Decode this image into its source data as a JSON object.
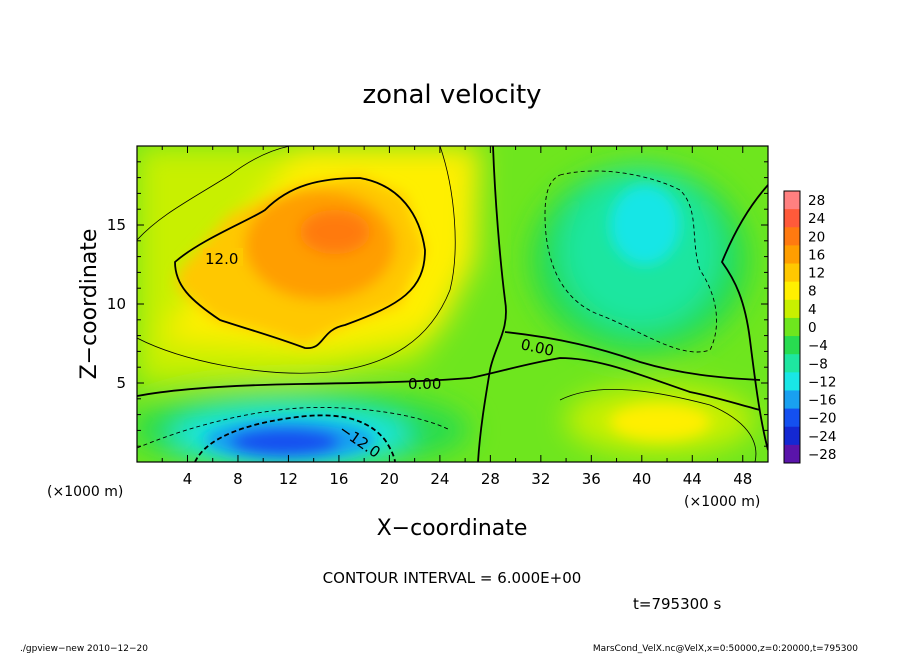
{
  "chart_data": {
    "type": "heatmap",
    "title": "zonal velocity",
    "xlabel": "X−coordinate",
    "ylabel": "Z−coordinate",
    "x_unit_note": "(×1000 m)",
    "y_unit_note": "(×1000 m)",
    "xlim": [
      0,
      50
    ],
    "ylim": [
      0,
      20
    ],
    "x_ticks": [
      4,
      8,
      12,
      16,
      20,
      24,
      28,
      32,
      36,
      40,
      44,
      48
    ],
    "y_ticks": [
      5,
      10,
      15
    ],
    "colorbar": {
      "levels": [
        28,
        24,
        20,
        16,
        12,
        8,
        4,
        0,
        -4,
        -8,
        -12,
        -16,
        -20,
        -24,
        -28
      ],
      "labels": [
        "28",
        "24",
        "20",
        "16",
        "12",
        "8",
        "4",
        "0",
        "−4",
        "−8",
        "−12",
        "−16",
        "−20",
        "−24",
        "−28"
      ],
      "colors": [
        "#ff8080",
        "#ff5a3a",
        "#ff7a10",
        "#ff9e00",
        "#ffc800",
        "#ffef00",
        "#c8f000",
        "#6ee61e",
        "#28dc50",
        "#1ee6a0",
        "#19e6e6",
        "#19a0f0",
        "#1450f0",
        "#1428d2",
        "#5a14aa"
      ]
    },
    "contour_interval": "CONTOUR INTERVAL = 6.000E+00",
    "contour_labels": [
      "12.0",
      "0.00",
      "0.00",
      "−12.0"
    ],
    "time_label": "t=795300 s",
    "grid": false
  },
  "footer": {
    "left": "./gpview−new   2010−12−20",
    "right": "MarsCond_VelX.nc@VelX,x=0:50000,z=0:20000,t=795300"
  }
}
